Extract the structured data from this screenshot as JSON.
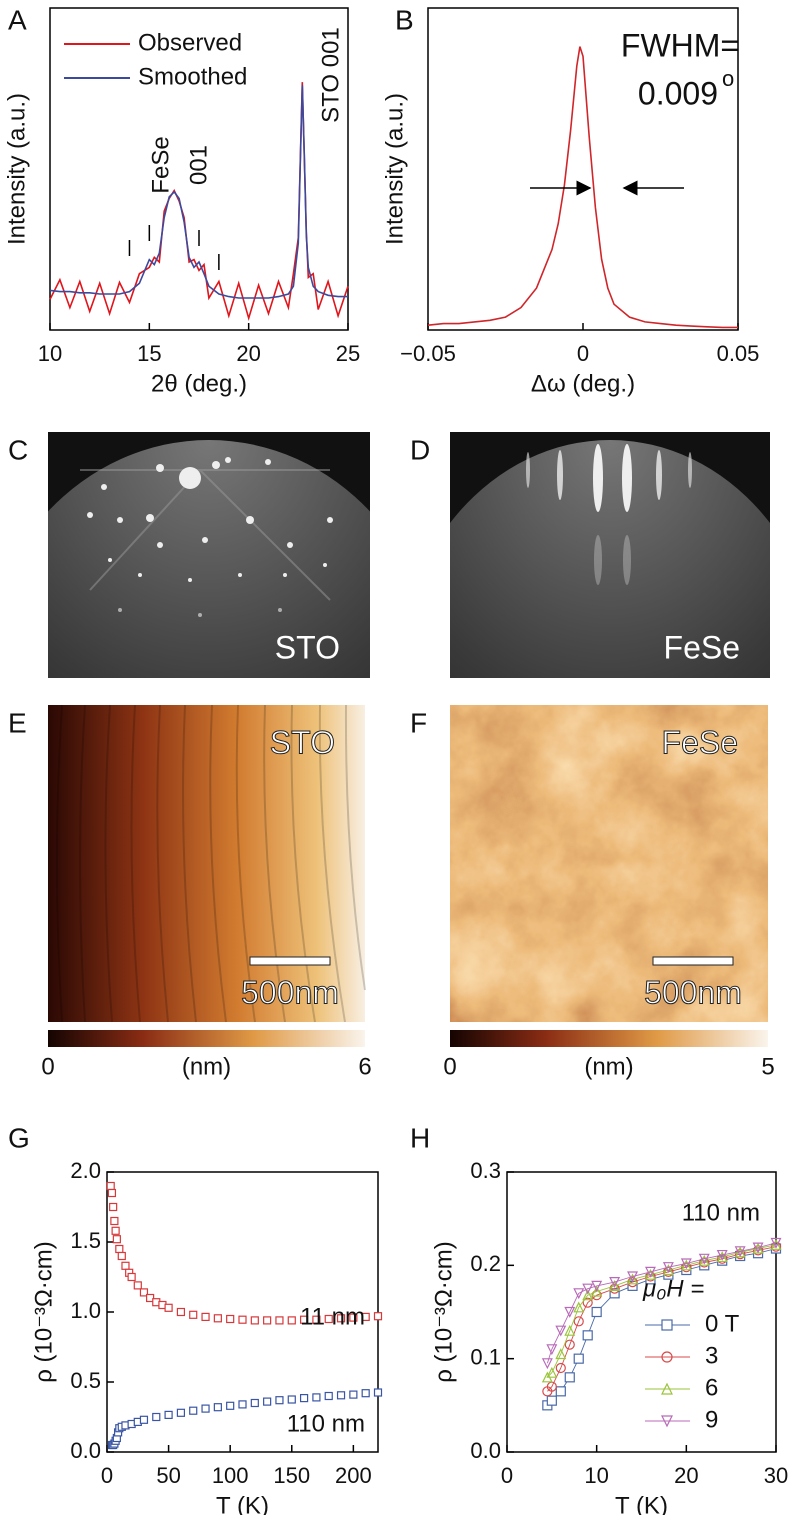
{
  "chart_data": [
    {
      "panel": "A",
      "type": "line",
      "xlabel": "2θ (deg.)",
      "ylabel": "Intensity (a.u.)",
      "log": true,
      "xlim": [
        10,
        25
      ],
      "xticks": [
        10,
        15,
        20,
        25
      ],
      "ylim": [
        10,
        100000
      ],
      "legend": "upper left",
      "x": [
        10,
        10.5,
        11,
        11.5,
        12,
        12.5,
        13,
        13.5,
        14,
        14.5,
        15,
        15.25,
        15.5,
        15.75,
        16,
        16.25,
        16.5,
        16.75,
        17,
        17.25,
        17.5,
        17.75,
        18,
        18.5,
        19,
        19.5,
        20,
        20.5,
        21,
        21.5,
        22,
        22.25,
        22.5,
        22.6,
        22.7,
        22.8,
        22.9,
        23,
        23.25,
        23.5,
        24,
        24.5,
        25
      ],
      "series": [
        {
          "name": "Observed",
          "color": "#e0161c",
          "values": [
            24,
            42,
            19,
            40,
            17,
            38,
            16,
            39,
            22,
            50,
            60,
            80,
            70,
            300,
            430,
            540,
            400,
            250,
            70,
            75,
            55,
            65,
            25,
            40,
            15,
            38,
            14,
            36,
            16,
            40,
            19,
            50,
            140,
            1300,
            12000,
            1400,
            170,
            45,
            50,
            18,
            40,
            15,
            35
          ]
        },
        {
          "name": "Smoothed",
          "color": "#3c4a9e",
          "values": [
            31,
            30,
            30,
            29,
            29,
            28,
            28,
            28,
            30,
            38,
            75,
            65,
            90,
            250,
            450,
            520,
            430,
            220,
            80,
            60,
            70,
            50,
            35,
            28,
            26,
            25,
            25,
            25,
            25,
            26,
            28,
            35,
            120,
            1200,
            11000,
            1500,
            150,
            60,
            35,
            30,
            27,
            26,
            26
          ]
        }
      ],
      "peak_markers": [
        14,
        15,
        17.5,
        18.5
      ],
      "annotations": [
        "FeSe",
        "001",
        "STO 001"
      ]
    },
    {
      "panel": "B",
      "type": "line",
      "xlabel": "Δω (deg.)",
      "ylabel": "Intensity (a.u.)",
      "xlim": [
        -0.05,
        0.05
      ],
      "xticks": [
        {
          "value": -0.05,
          "label": "−0.05"
        },
        0,
        0.05
      ],
      "ylim": [
        0,
        1
      ],
      "x": [
        -0.05,
        -0.045,
        -0.04,
        -0.035,
        -0.03,
        -0.025,
        -0.02,
        -0.015,
        -0.01,
        -0.008,
        -0.006,
        -0.004,
        -0.002,
        -0.001,
        0,
        0.002,
        0.004,
        0.006,
        0.008,
        0.01,
        0.015,
        0.02,
        0.025,
        0.03,
        0.035,
        0.04,
        0.045,
        0.05
      ],
      "series": [
        {
          "color": "#d0262a",
          "values": [
            0.015,
            0.02,
            0.02,
            0.025,
            0.03,
            0.04,
            0.07,
            0.13,
            0.25,
            0.33,
            0.45,
            0.62,
            0.82,
            0.88,
            0.85,
            0.6,
            0.38,
            0.22,
            0.13,
            0.08,
            0.04,
            0.025,
            0.02,
            0.015,
            0.012,
            0.01,
            0.008,
            0.008
          ]
        }
      ],
      "fwhm_label": "FWHM=",
      "fwhm_value": "0.009",
      "fwhm_unit": "o"
    },
    {
      "panel": "G",
      "type": "scatter",
      "xlabel": "T (K)",
      "ylabel": "ρ (10⁻³Ω·cm)",
      "xlim": [
        0,
        220
      ],
      "xticks": [
        0,
        50,
        100,
        150,
        200
      ],
      "ylim": [
        0,
        2
      ],
      "yticks": [
        {
          "value": 0,
          "label": "0.0"
        },
        0.5,
        {
          "value": 1,
          "label": "1.0"
        },
        1.5,
        {
          "value": 2,
          "label": "2.0"
        }
      ],
      "series": [
        {
          "name": "11 nm",
          "color": "#d8383a",
          "marker": "s",
          "x": [
            3,
            4,
            5,
            6,
            7,
            8,
            10,
            12,
            15,
            18,
            20,
            25,
            30,
            35,
            40,
            45,
            50,
            60,
            70,
            80,
            90,
            100,
            110,
            120,
            130,
            140,
            150,
            160,
            170,
            180,
            190,
            200,
            210,
            220
          ],
          "values": [
            1.9,
            1.85,
            1.75,
            1.65,
            1.58,
            1.52,
            1.45,
            1.4,
            1.33,
            1.28,
            1.25,
            1.19,
            1.14,
            1.1,
            1.07,
            1.05,
            1.03,
            1.0,
            0.98,
            0.965,
            0.955,
            0.95,
            0.945,
            0.94,
            0.94,
            0.94,
            0.94,
            0.945,
            0.945,
            0.95,
            0.955,
            0.96,
            0.965,
            0.97
          ]
        },
        {
          "name": "110 nm",
          "color": "#3a55a4",
          "marker": "s",
          "x": [
            4,
            5,
            6,
            7,
            8,
            9,
            10,
            12,
            15,
            20,
            25,
            30,
            40,
            50,
            60,
            70,
            80,
            90,
            100,
            110,
            120,
            130,
            140,
            150,
            160,
            170,
            180,
            190,
            200,
            210,
            220
          ],
          "values": [
            0.05,
            0.05,
            0.06,
            0.08,
            0.1,
            0.14,
            0.17,
            0.18,
            0.19,
            0.2,
            0.215,
            0.23,
            0.25,
            0.265,
            0.28,
            0.295,
            0.31,
            0.32,
            0.33,
            0.34,
            0.35,
            0.36,
            0.37,
            0.375,
            0.385,
            0.39,
            0.4,
            0.405,
            0.41,
            0.42,
            0.425
          ]
        }
      ]
    },
    {
      "panel": "H",
      "type": "scatter",
      "title": "110 nm",
      "title_color": "#3a55a4",
      "xlabel": "T (K)",
      "ylabel": "ρ (10⁻³Ω·cm)",
      "xlim": [
        0,
        30
      ],
      "xticks": [
        0,
        10,
        20,
        30
      ],
      "ylim": [
        0,
        0.3
      ],
      "yticks": [
        {
          "value": 0,
          "label": "0.0"
        },
        0.1,
        0.2,
        0.3
      ],
      "line": true,
      "legend_title": "μ₀H =",
      "x": [
        4.5,
        5,
        6,
        7,
        8,
        9,
        10,
        12,
        14,
        16,
        18,
        20,
        22,
        24,
        26,
        28,
        30
      ],
      "series": [
        {
          "name": "0 T",
          "color": "#4a6aa8",
          "marker": "s",
          "values": [
            0.05,
            0.055,
            0.065,
            0.08,
            0.1,
            0.125,
            0.15,
            0.17,
            0.178,
            0.185,
            0.19,
            0.195,
            0.2,
            0.205,
            0.21,
            0.213,
            0.218
          ]
        },
        {
          "name": "3",
          "color": "#d84a4a",
          "marker": "o",
          "values": [
            0.065,
            0.07,
            0.09,
            0.115,
            0.14,
            0.16,
            0.168,
            0.175,
            0.182,
            0.188,
            0.193,
            0.198,
            0.203,
            0.207,
            0.212,
            0.216,
            0.22
          ]
        },
        {
          "name": "6",
          "color": "#9ac43a",
          "marker": "^",
          "values": [
            0.08,
            0.085,
            0.105,
            0.13,
            0.155,
            0.168,
            0.172,
            0.178,
            0.185,
            0.19,
            0.195,
            0.2,
            0.205,
            0.209,
            0.214,
            0.218,
            0.222
          ]
        },
        {
          "name": "9",
          "color": "#b86ab8",
          "marker": "v",
          "values": [
            0.095,
            0.11,
            0.13,
            0.15,
            0.17,
            0.175,
            0.178,
            0.182,
            0.188,
            0.193,
            0.198,
            0.202,
            0.207,
            0.211,
            0.215,
            0.219,
            0.224
          ]
        }
      ]
    }
  ],
  "images": [
    {
      "panel": "C",
      "label": "STO"
    },
    {
      "panel": "D",
      "label": "FeSe"
    },
    {
      "panel": "E",
      "label": "STO",
      "scale_bar": "500nm",
      "colorbar": {
        "ticks": [
          0,
          6
        ],
        "label": "(nm)"
      }
    },
    {
      "panel": "F",
      "label": "FeSe",
      "scale_bar": "500nm",
      "colorbar": {
        "ticks": [
          0,
          5
        ],
        "label": "(nm)"
      }
    }
  ]
}
